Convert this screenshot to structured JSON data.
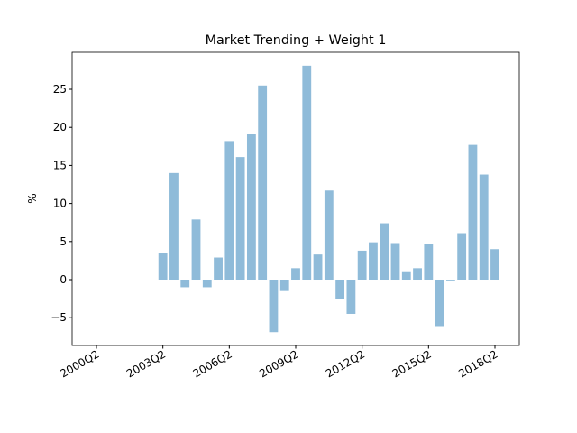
{
  "chart_data": {
    "type": "bar",
    "title": "Market Trending + Weight 1",
    "y_label": "%",
    "categories": [
      "2000Q2",
      null,
      null,
      null,
      null,
      null,
      "2003Q2",
      null,
      null,
      null,
      null,
      null,
      "2006Q2",
      null,
      null,
      null,
      null,
      null,
      "2009Q2",
      null,
      null,
      null,
      null,
      null,
      "2012Q2",
      null,
      null,
      null,
      null,
      null,
      "2015Q2",
      null,
      null,
      null,
      null,
      null,
      "2018Q2"
    ],
    "values": [
      null,
      null,
      null,
      null,
      null,
      null,
      3.5,
      14.0,
      -1.0,
      7.9,
      -1.0,
      2.9,
      18.2,
      16.1,
      19.1,
      25.5,
      -6.9,
      -1.5,
      1.5,
      28.1,
      3.3,
      11.7,
      -2.5,
      -4.5,
      3.8,
      4.9,
      7.4,
      4.8,
      1.1,
      1.5,
      4.7,
      -6.1,
      -0.1,
      6.1,
      17.7,
      13.8,
      4.0
    ],
    "color": "#8fbbd9",
    "ylim": [
      -8.65,
      29.86
    ],
    "yticks": [
      {
        "value": -5,
        "label": "−5"
      },
      0,
      5,
      10,
      15,
      20,
      25
    ],
    "grid": false
  }
}
